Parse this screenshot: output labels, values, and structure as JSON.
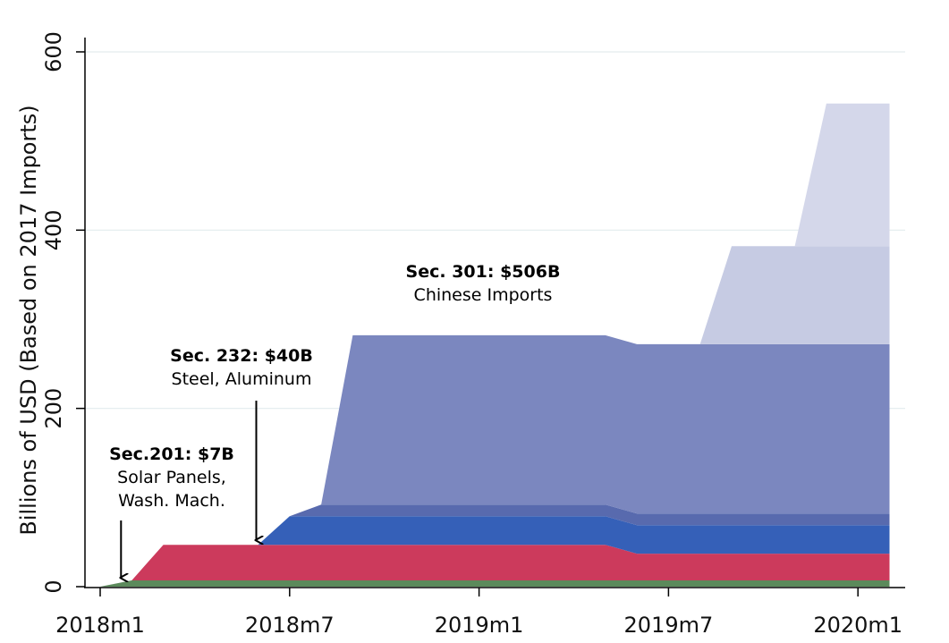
{
  "chart_data": {
    "type": "area",
    "title": "",
    "xlabel": "",
    "ylabel": "Billions of USD (Based on 2017 Imports)",
    "xlim": [
      "2018m1",
      "2020m2"
    ],
    "ylim": [
      0,
      600
    ],
    "x_ticks": [
      "2018m1",
      "2018m7",
      "2019m1",
      "2019m7",
      "2020m1"
    ],
    "y_ticks": [
      0,
      200,
      400,
      600
    ],
    "grid": "horizontal",
    "legend": "none",
    "stacked": true,
    "series": [
      {
        "color": "#5b8a5b",
        "points": [
          [
            "2018m1",
            0
          ],
          [
            "2018m2",
            7
          ],
          [
            "2020m2",
            7
          ]
        ]
      },
      {
        "color": "#cc3a5c",
        "points": [
          [
            "2018m2",
            0
          ],
          [
            "2018m3",
            40
          ],
          [
            "2019m5",
            40
          ],
          [
            "2019m6",
            30
          ],
          [
            "2020m2",
            30
          ]
        ]
      },
      {
        "color": "#3560b8",
        "points": [
          [
            "2018m6",
            0
          ],
          [
            "2018m7",
            32
          ],
          [
            "2019m5",
            32
          ],
          [
            "2019m6",
            32
          ],
          [
            "2020m2",
            32
          ]
        ]
      },
      {
        "color": "#586aae",
        "points": [
          [
            "2018m7",
            0
          ],
          [
            "2018m8",
            13
          ],
          [
            "2019m5",
            13
          ],
          [
            "2019m6",
            13
          ],
          [
            "2020m2",
            13
          ]
        ]
      },
      {
        "color": "#7b87bf",
        "points": [
          [
            "2018m8",
            0
          ],
          [
            "2018m9",
            190
          ],
          [
            "2019m5",
            190
          ],
          [
            "2019m6",
            190
          ],
          [
            "2020m2",
            190
          ]
        ]
      },
      {
        "color": "#c6cbe3",
        "points": [
          [
            "2019m8",
            0
          ],
          [
            "2019m9",
            110
          ],
          [
            "2020m2",
            110
          ]
        ]
      },
      {
        "color": "#d4d7ea",
        "points": [
          [
            "2019m11",
            0
          ],
          [
            "2019m12",
            160
          ],
          [
            "2020m2",
            160
          ]
        ]
      }
    ],
    "annotations": [
      {
        "title": "Sec.201: $7B",
        "text": [
          "Solar Panels,",
          "Wash. Mach."
        ],
        "points_to": "2018m2"
      },
      {
        "title": "Sec. 232: $40B",
        "text": [
          "Steel, Aluminum"
        ],
        "points_to": "2018m6"
      },
      {
        "title": "Sec. 301: $506B",
        "text": [
          "Chinese Imports"
        ],
        "points_to": ""
      }
    ]
  }
}
